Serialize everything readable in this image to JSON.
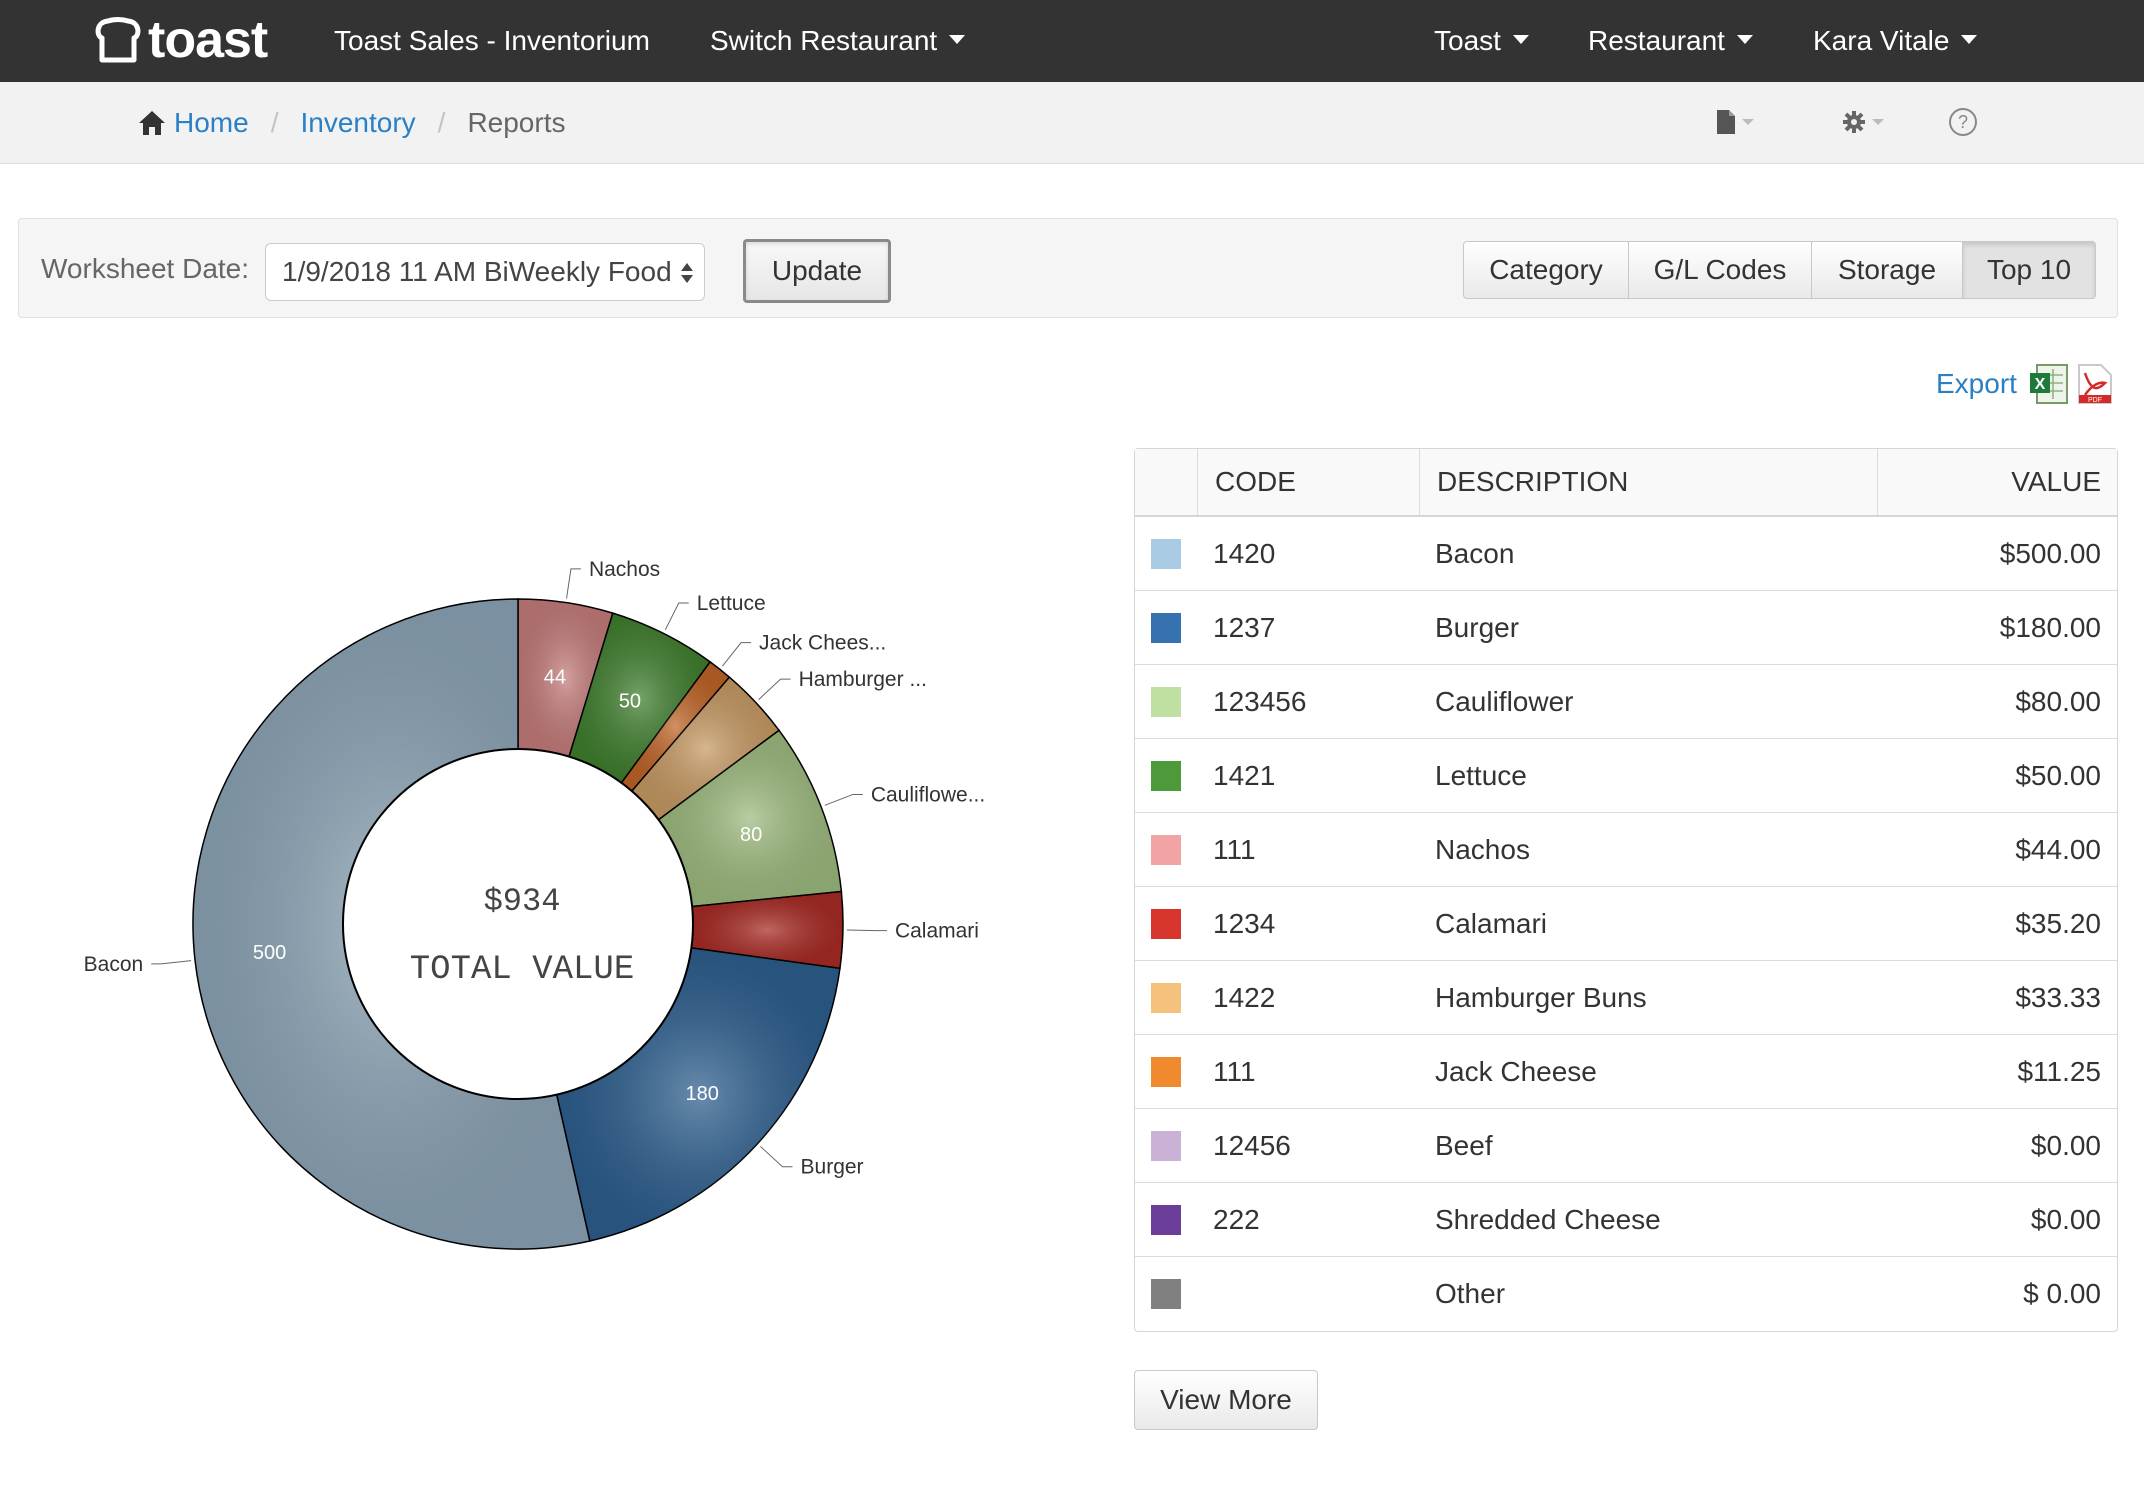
{
  "nav": {
    "logo_text": "toast",
    "app_name": "Toast Sales - Inventorium",
    "switch_restaurant": "Switch Restaurant",
    "toast_menu": "Toast",
    "restaurant_menu": "Restaurant",
    "user_menu": "Kara Vitale"
  },
  "breadcrumb": {
    "home": "Home",
    "inventory": "Inventory",
    "current": "Reports"
  },
  "toolbar": {
    "icons": [
      "file-icon",
      "gear-icon",
      "help-icon"
    ]
  },
  "worksheet": {
    "label": "Worksheet Date:",
    "selected": "1/9/2018 11 AM BiWeekly Food",
    "update_label": "Update",
    "views": [
      "Category",
      "G/L Codes",
      "Storage",
      "Top 10"
    ],
    "active_view": "Top 10"
  },
  "export": {
    "label": "Export",
    "icons": [
      "excel-icon",
      "pdf-icon"
    ]
  },
  "table": {
    "headers": {
      "code": "CODE",
      "description": "DESCRIPTION",
      "value": "VALUE"
    },
    "rows": [
      {
        "color": "#a9cbe3",
        "code": "1420",
        "description": "Bacon",
        "value": "$500.00"
      },
      {
        "color": "#3672b0",
        "code": "1237",
        "description": "Burger",
        "value": "$180.00"
      },
      {
        "color": "#bfe0a0",
        "code": "123456",
        "description": "Cauliflower",
        "value": "$80.00"
      },
      {
        "color": "#4e9a3a",
        "code": "1421",
        "description": "Lettuce",
        "value": "$50.00"
      },
      {
        "color": "#f2a3a3",
        "code": "111",
        "description": "Nachos",
        "value": "$44.00"
      },
      {
        "color": "#d6362e",
        "code": "1234",
        "description": "Calamari",
        "value": "$35.20"
      },
      {
        "color": "#f5c27e",
        "code": "1422",
        "description": "Hamburger Buns",
        "value": "$33.33"
      },
      {
        "color": "#ef8a2e",
        "code": "111",
        "description": "Jack Cheese",
        "value": "$11.25"
      },
      {
        "color": "#c9b2d6",
        "code": "12456",
        "description": "Beef",
        "value": "$0.00"
      },
      {
        "color": "#6a3d9a",
        "code": "222",
        "description": "Shredded Cheese",
        "value": "$0.00"
      },
      {
        "color": "#808080",
        "code": "",
        "description": "Other",
        "value": "$ 0.00"
      }
    ],
    "view_more_label": "View More"
  },
  "chart_data": {
    "type": "pie",
    "donut": true,
    "center_value": "$934",
    "center_label": "TOTAL VALUE",
    "slices": [
      {
        "name": "Nachos",
        "label": "Nachos",
        "value": 44,
        "value_label": "44",
        "color": "#c47c7b"
      },
      {
        "name": "Lettuce",
        "label": "Lettuce",
        "value": 50,
        "value_label": "50",
        "color": "#3f7f2e"
      },
      {
        "name": "Jack Cheese",
        "label": "Jack Chees...",
        "value": 11.25,
        "value_label": "",
        "color": "#bf6426"
      },
      {
        "name": "Hamburger Buns",
        "label": "Hamburger ...",
        "value": 33.33,
        "value_label": "",
        "color": "#c79a63"
      },
      {
        "name": "Cauliflower",
        "label": "Cauliflowe...",
        "value": 80,
        "value_label": "80",
        "color": "#9dba7e"
      },
      {
        "name": "Calamari",
        "label": "Calamari",
        "value": 35.2,
        "value_label": "",
        "color": "#a82a24"
      },
      {
        "name": "Burger",
        "label": "Burger",
        "value": 180,
        "value_label": "180",
        "color": "#2c5e8e"
      },
      {
        "name": "Bacon",
        "label": "Bacon",
        "value": 500,
        "value_label": "500",
        "color": "#8ca4b6"
      }
    ]
  }
}
